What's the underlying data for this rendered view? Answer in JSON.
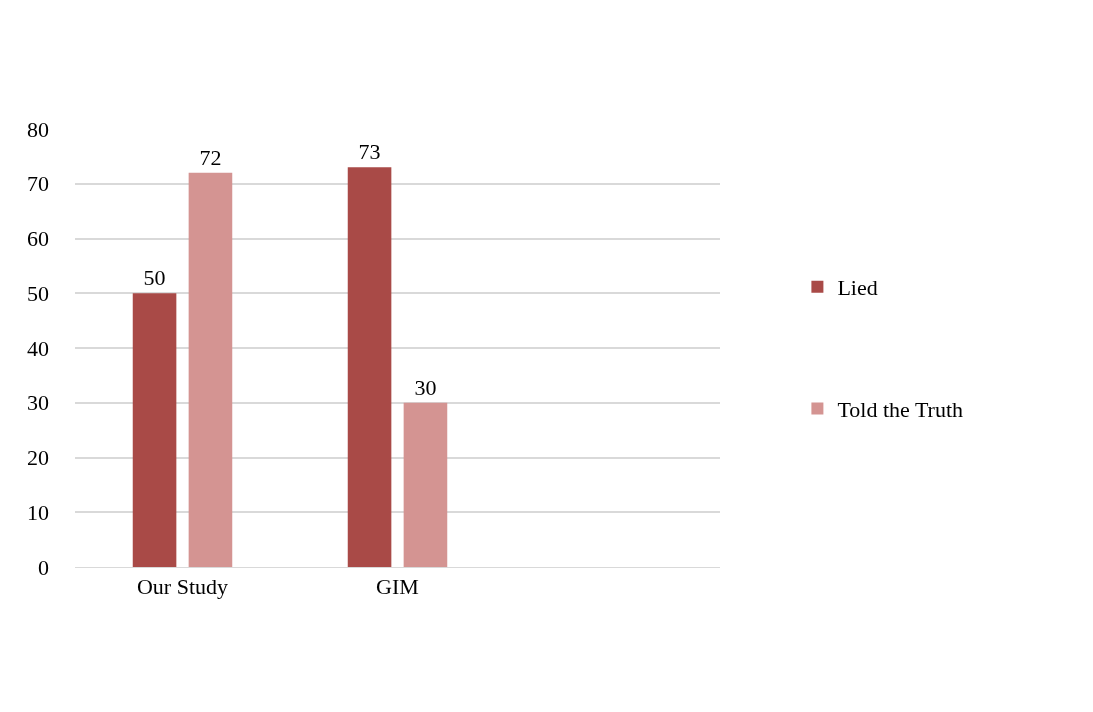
{
  "chart_data": {
    "type": "bar",
    "categories": [
      "Our Study",
      "GIM",
      null
    ],
    "series": [
      {
        "name": "Lied",
        "color": "#a94a47",
        "values": [
          50,
          73,
          null
        ]
      },
      {
        "name": "Told the Truth",
        "color": "#d49492",
        "values": [
          72,
          30,
          null
        ]
      }
    ],
    "ylim": [
      0,
      80
    ],
    "yticks": [
      0,
      10,
      20,
      30,
      40,
      50,
      60,
      70,
      80
    ],
    "grid": "y",
    "legend": "right",
    "data_labels": true
  }
}
